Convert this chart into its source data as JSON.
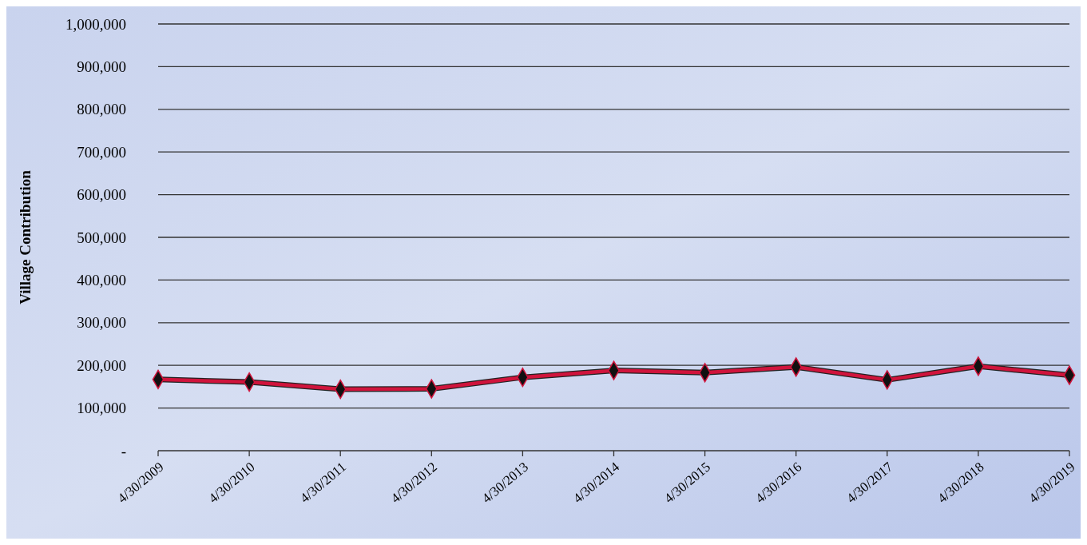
{
  "chart_data": {
    "type": "line",
    "ylabel": "Village Contribution",
    "categories": [
      "4/30/2009",
      "4/30/2010",
      "4/30/2011",
      "4/30/2012",
      "4/30/2013",
      "4/30/2014",
      "4/30/2015",
      "4/30/2016",
      "4/30/2017",
      "4/30/2018",
      "4/30/2019"
    ],
    "series": [
      {
        "color": "#d0143c",
        "values": [
          167000,
          161000,
          144000,
          145000,
          172000,
          188000,
          183000,
          196000,
          166000,
          198000,
          177000
        ]
      }
    ],
    "ylim": [
      0,
      1000000
    ],
    "yticks": [
      {
        "value": 0,
        "label": "-"
      },
      {
        "value": 100000,
        "label": "100,000"
      },
      {
        "value": 200000,
        "label": "200,000"
      },
      {
        "value": 300000,
        "label": "300,000"
      },
      {
        "value": 400000,
        "label": "400,000"
      },
      {
        "value": 500000,
        "label": "500,000"
      },
      {
        "value": 600000,
        "label": "600,000"
      },
      {
        "value": 700000,
        "label": "700,000"
      },
      {
        "value": 800000,
        "label": "800,000"
      },
      {
        "value": 900000,
        "label": "900,000"
      },
      {
        "value": 1000000,
        "label": "1,000,000"
      }
    ],
    "grid": "y",
    "marker": "diamond",
    "line_style": "solid"
  }
}
